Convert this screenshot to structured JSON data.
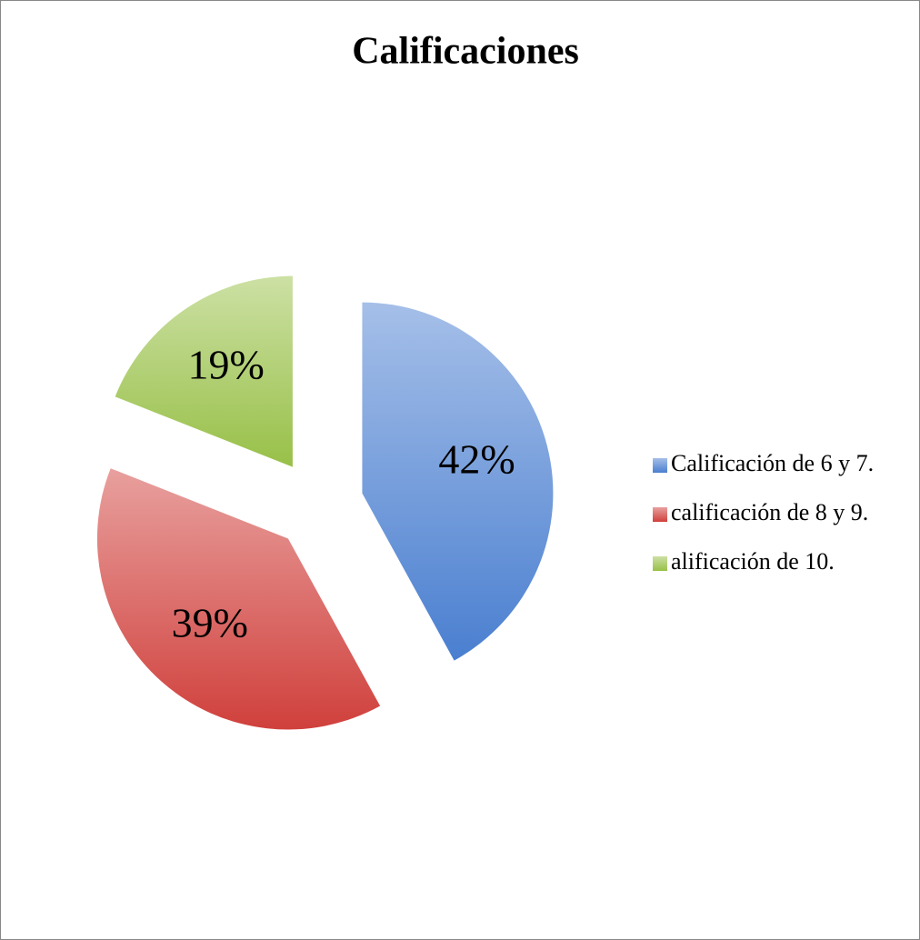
{
  "chart_data": {
    "type": "pie",
    "title": "Calificaciones",
    "categories": [
      "Calificación de 6 y 7.",
      "calificación de 8 y 9.",
      "alificación de 10."
    ],
    "values": [
      42,
      39,
      19
    ],
    "value_labels": [
      "42%",
      "39%",
      "19%"
    ],
    "colors": [
      "#4a7fd0",
      "#d0403c",
      "#98c048"
    ],
    "legend": "right"
  }
}
